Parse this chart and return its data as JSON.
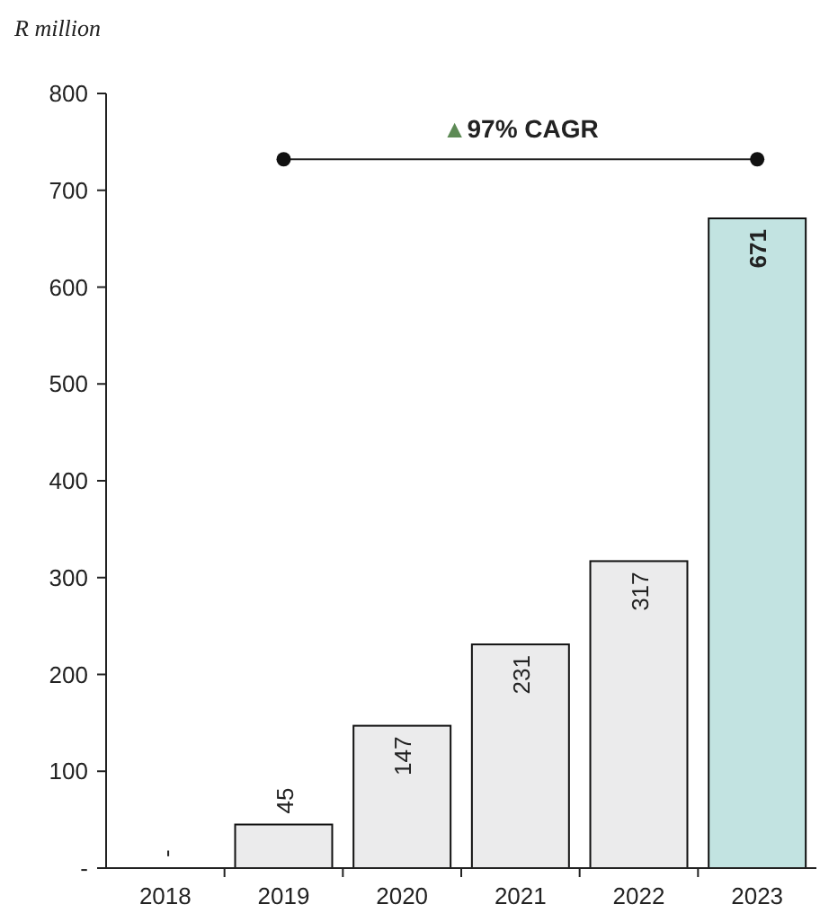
{
  "chart_data": {
    "type": "bar",
    "ylabel": "R million",
    "categories": [
      "2018",
      "2019",
      "2020",
      "2021",
      "2022",
      "2023"
    ],
    "values": [
      0,
      45,
      147,
      231,
      317,
      671
    ],
    "colors": [
      "#ebebec",
      "#ebebec",
      "#ebebec",
      "#ebebec",
      "#ebebec",
      "#c2e3e1"
    ],
    "value_labels": [
      "-",
      "45",
      "147",
      "231",
      "317",
      "671"
    ],
    "ylim": [
      0,
      800
    ],
    "yticks": [
      {
        "value": 0,
        "label": "-"
      },
      100,
      200,
      300,
      400,
      500,
      600,
      700,
      800
    ],
    "annotations": [
      "▲97% CAGR"
    ],
    "grid": false
  }
}
